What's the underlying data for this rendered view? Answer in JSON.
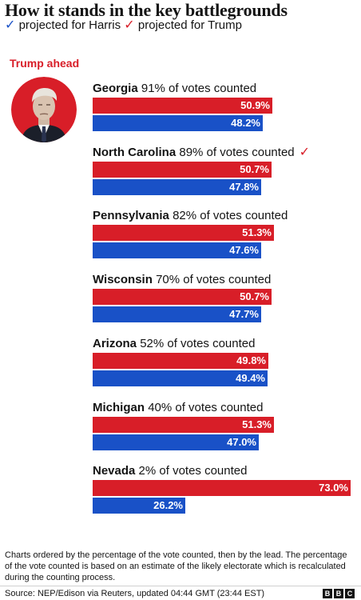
{
  "header": {
    "title": "How it stands in the key battlegrounds",
    "legend": [
      {
        "check": "✓",
        "label": "projected for Harris",
        "color": "#1951c7"
      },
      {
        "check": "✓",
        "label": "projected for Trump",
        "color": "#d81e28"
      }
    ]
  },
  "lead": {
    "label": "Trump ahead",
    "label_color": "#d81e28",
    "avatar": "trump-portrait"
  },
  "colors": {
    "trump": "#d81e28",
    "harris": "#1951c7"
  },
  "chart_data": {
    "type": "bar",
    "orientation": "horizontal",
    "xlim": [
      0,
      73.0
    ],
    "series_colors": {
      "Trump": "#d81e28",
      "Harris": "#1951c7"
    },
    "states": [
      {
        "name": "Georgia",
        "counted": "91% of votes counted",
        "check": "",
        "trump": 50.9,
        "harris": 48.2,
        "trump_label": "50.9%",
        "harris_label": "48.2%"
      },
      {
        "name": "North Carolina",
        "counted": "89% of votes counted",
        "check": "✓",
        "trump": 50.7,
        "harris": 47.8,
        "trump_label": "50.7%",
        "harris_label": "47.8%"
      },
      {
        "name": "Pennsylvania",
        "counted": "82% of votes counted",
        "check": "",
        "trump": 51.3,
        "harris": 47.6,
        "trump_label": "51.3%",
        "harris_label": "47.6%"
      },
      {
        "name": "Wisconsin",
        "counted": "70% of votes counted",
        "check": "",
        "trump": 50.7,
        "harris": 47.7,
        "trump_label": "50.7%",
        "harris_label": "47.7%"
      },
      {
        "name": "Arizona",
        "counted": "52% of votes counted",
        "check": "",
        "trump": 49.8,
        "harris": 49.4,
        "trump_label": "49.8%",
        "harris_label": "49.4%"
      },
      {
        "name": "Michigan",
        "counted": "40% of votes counted",
        "check": "",
        "trump": 51.3,
        "harris": 47.0,
        "trump_label": "51.3%",
        "harris_label": "47.0%"
      },
      {
        "name": "Nevada",
        "counted": "2% of votes counted",
        "check": "",
        "trump": 73.0,
        "harris": 26.2,
        "trump_label": "73.0%",
        "harris_label": "26.2%"
      }
    ]
  },
  "footer": {
    "note": "Charts ordered by the percentage of the vote counted, then by the lead. The percentage of the vote counted is based on an estimate of the likely electorate which is recalculated during the counting process.",
    "source": "Source: NEP/Edison via Reuters, updated 04:44 GMT (23:44 EST)",
    "logo": [
      "B",
      "B",
      "C"
    ]
  }
}
